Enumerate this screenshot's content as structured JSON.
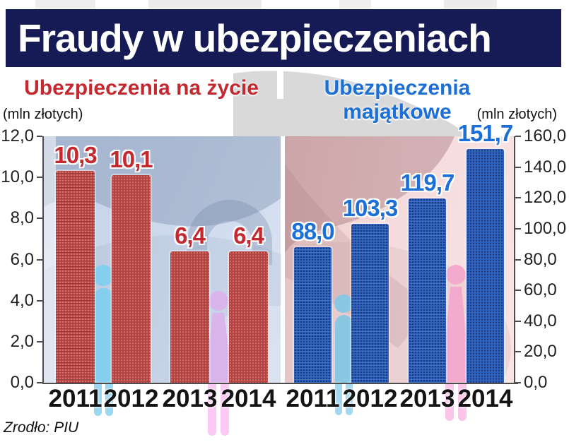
{
  "title": "Fraudy w ubezpieczeniach",
  "source_note": "Zrodło: PIU",
  "colors": {
    "title_bar_bg": "#161b55",
    "title_text": "#ffffff",
    "life_accent": "#c4292f",
    "property_accent": "#1b6fd6",
    "life_bar": "#b24444",
    "property_bar": "#2e63c0"
  },
  "chart_data": [
    {
      "type": "bar",
      "title": "Ubezpieczenia na życie",
      "unit_label": "(mln złotych)",
      "categories": [
        "2011",
        "2012",
        "2013",
        "2014"
      ],
      "values": [
        10.3,
        10.1,
        6.4,
        6.4
      ],
      "value_labels": [
        "10,3",
        "10,1",
        "6,4",
        "6,4"
      ],
      "ylim": [
        0,
        12
      ],
      "ytick_labels": [
        "12,0",
        "10,0",
        "8,0",
        "6,0",
        "4,0",
        "2,0",
        "0,0"
      ],
      "axis_side": "left",
      "grid": false,
      "legend": false,
      "bar_color": "#b24444",
      "value_label_color": "#c4292f"
    },
    {
      "type": "bar",
      "title": "Ubezpieczenia majątkowe",
      "unit_label": "(mln złotych)",
      "categories": [
        "2011",
        "2012",
        "2013",
        "2014"
      ],
      "values": [
        88.0,
        103.3,
        119.7,
        151.7
      ],
      "value_labels": [
        "88,0",
        "103,3",
        "119,7",
        "151,7"
      ],
      "ylim": [
        0,
        160
      ],
      "ytick_labels": [
        "160,0",
        "140,0",
        "120,0",
        "100,0",
        "80,0",
        "60,0",
        "40,0",
        "20,0",
        "0,0"
      ],
      "axis_side": "right",
      "grid": false,
      "legend": false,
      "bar_color": "#2e63c0",
      "value_label_color": "#1b6fd6"
    }
  ]
}
